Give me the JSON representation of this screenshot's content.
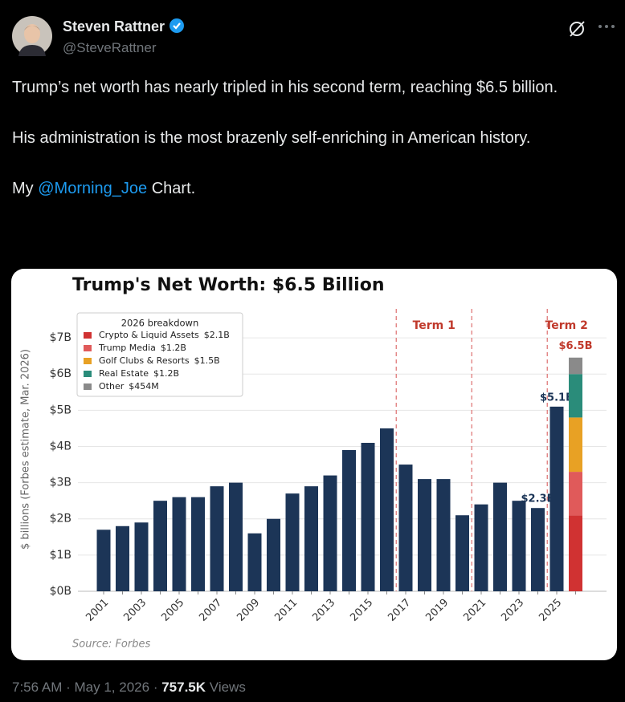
{
  "tweet": {
    "author": {
      "name": "Steven Rattner",
      "handle": "@SteveRattner"
    },
    "text": {
      "paragraphs": [
        "Trump’s net worth has nearly tripled in his second term, reaching $6.5 billion.",
        "His administration is the most brazenly self-enriching in American history."
      ],
      "last": {
        "before": "My",
        "mention": "@Morning_Joe",
        "after": "Chart."
      }
    },
    "footer": {
      "time": "7:56 AM",
      "separator": "·",
      "date": "May 1, 2026",
      "views": "757.5K",
      "views_label": "Views"
    }
  },
  "chart_data": {
    "type": "bar",
    "title": "Trump's Net Worth: $6.5 Billion",
    "y_label": "$ billions (Forbes estimate, Mar. 2026)",
    "source": "Source: Forbes",
    "categories": [
      "2001",
      null,
      "2003",
      null,
      "2005",
      null,
      "2007",
      null,
      "2009",
      null,
      "2011",
      null,
      "2013",
      null,
      "2015",
      null,
      "2017",
      null,
      "2019",
      null,
      "2021",
      null,
      "2023",
      null,
      "2025",
      null
    ],
    "values": [
      1.7,
      1.8,
      1.9,
      2.5,
      2.6,
      2.6,
      2.9,
      3.0,
      1.6,
      2.0,
      2.7,
      2.9,
      3.2,
      3.9,
      4.1,
      4.5,
      3.5,
      3.1,
      3.1,
      2.1,
      2.4,
      3.0,
      2.5,
      2.3,
      5.1,
      null
    ],
    "value_labels": [
      null,
      null,
      null,
      null,
      null,
      null,
      null,
      null,
      null,
      null,
      null,
      null,
      null,
      null,
      null,
      null,
      null,
      null,
      null,
      null,
      null,
      null,
      null,
      "$2.3B",
      "$5.1B",
      null
    ],
    "color": "#1c3557",
    "ylim": [
      0,
      7.8
    ],
    "yticks": [
      {
        "value": 0,
        "label": "$0B"
      },
      {
        "value": 1,
        "label": "$1B"
      },
      {
        "value": 2,
        "label": "$2B"
      },
      {
        "value": 3,
        "label": "$3B"
      },
      {
        "value": 4,
        "label": "$4B"
      },
      {
        "value": 5,
        "label": "$5B"
      },
      {
        "value": 6,
        "label": "$6B"
      },
      {
        "value": 7,
        "label": "$7B"
      }
    ],
    "grid": true,
    "legend": "upper left",
    "stack": {
      "legend_title": "2026 breakdown",
      "total_label": "$6.5B",
      "series": [
        {
          "name": "Crypto & Liquid Assets",
          "color": "#d03232",
          "value": 2.1,
          "value_label": "$2.1B"
        },
        {
          "name": "Trump Media",
          "color": "#e05a5a",
          "value": 1.2,
          "value_label": "$1.2B"
        },
        {
          "name": "Golf Clubs & Resorts",
          "color": "#e8a124",
          "value": 1.5,
          "value_label": "$1.5B"
        },
        {
          "name": "Real Estate",
          "color": "#2a8c7a",
          "value": 1.2,
          "value_label": "$1.2B"
        },
        {
          "name": "Other",
          "color": "#8a8a8a",
          "value": 0.454,
          "value_label": "$454M"
        }
      ]
    },
    "terms": [
      {
        "label": "Term 1",
        "start": 2017,
        "end": 2021
      },
      {
        "label": "Term 2",
        "start": 2025
      }
    ]
  }
}
